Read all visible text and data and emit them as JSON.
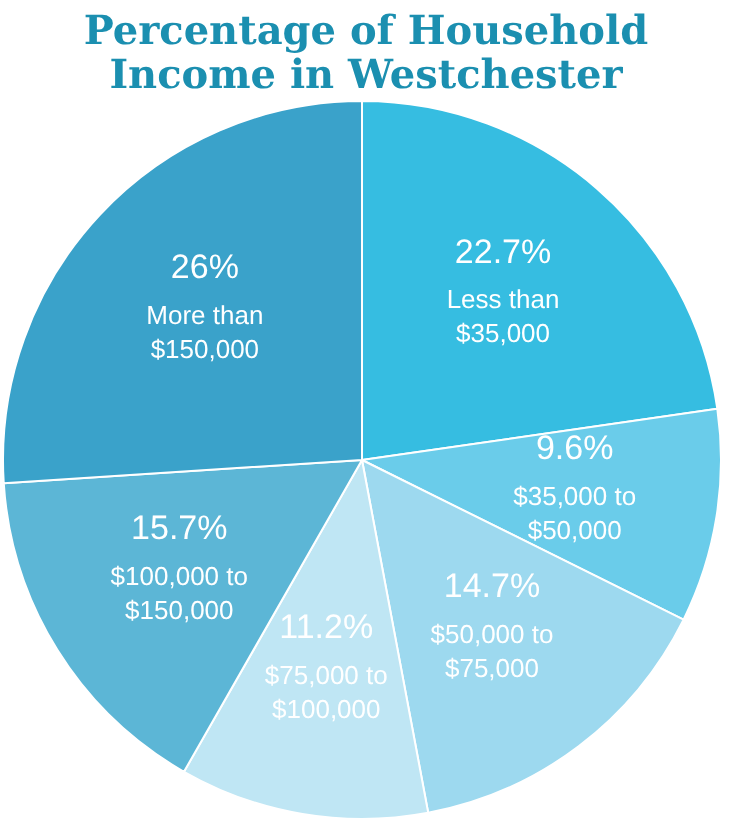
{
  "chart_data": {
    "type": "pie",
    "title": "Percentage of Household Income in Westchester",
    "categories": [
      "Less than $35,000",
      "$35,000 to $50,000",
      "$50,000 to $75,000",
      "$75,000 to $100,000",
      "$100,000 to $150,000",
      "More than $150,000"
    ],
    "values": [
      22.7,
      9.6,
      14.7,
      11.2,
      15.7,
      26
    ],
    "colors": [
      "#36bde1",
      "#6accea",
      "#9dd9ef",
      "#bfe6f4",
      "#5cb6d6",
      "#3aa2ca"
    ],
    "value_labels": [
      "22.7%",
      "9.6%",
      "14.7%",
      "11.2%",
      "15.7%",
      "26%"
    ]
  }
}
